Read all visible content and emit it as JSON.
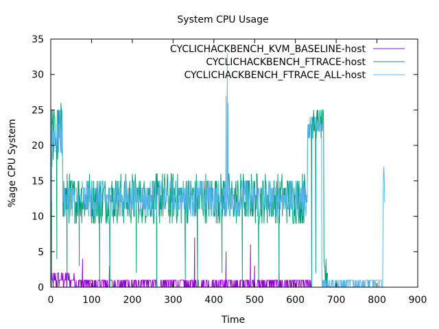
{
  "chart_data": {
    "type": "line",
    "title": "System CPU Usage",
    "xlabel": "Time",
    "ylabel": "%age CPU System",
    "xlim": [
      0,
      900
    ],
    "ylim": [
      0,
      35
    ],
    "xticks": [
      0,
      100,
      200,
      300,
      400,
      500,
      600,
      700,
      800,
      900
    ],
    "yticks": [
      0,
      5,
      10,
      15,
      20,
      25,
      30,
      35
    ],
    "grid": false,
    "legend_position": "top-right",
    "series": [
      {
        "name": "CYCLICHACKBENCH_KVM_BASELINE-host",
        "color": "#9400d3",
        "segments": [
          {
            "x_start": 0,
            "x_end": 60,
            "min": 0,
            "max": 2,
            "step": 1
          },
          {
            "x_start": 60,
            "x_end": 640,
            "min": 0,
            "max": 1,
            "step": 1
          },
          {
            "x_start": 640,
            "x_end": 680,
            "min": 0,
            "max": 0,
            "step": 2
          }
        ],
        "spikes": [
          [
            2,
            2
          ],
          [
            78,
            4
          ],
          [
            144,
            3
          ],
          [
            353,
            7
          ],
          [
            430,
            5
          ],
          [
            490,
            6
          ],
          [
            500,
            3
          ],
          [
            560,
            2
          ]
        ]
      },
      {
        "name": "CYCLICHACKBENCH_FTRACE-host",
        "color": "#009e73",
        "segments": [
          {
            "x_start": 0,
            "x_end": 30,
            "min": 17,
            "max": 26,
            "step": 1
          },
          {
            "x_start": 30,
            "x_end": 630,
            "min": 9,
            "max": 16,
            "step": 1
          },
          {
            "x_start": 630,
            "x_end": 670,
            "min": 21,
            "max": 25,
            "step": 1
          },
          {
            "x_start": 670,
            "x_end": 680,
            "min": 0,
            "max": 4,
            "step": 1
          }
        ],
        "spikes": [
          [
            2,
            0
          ],
          [
            15,
            4
          ],
          [
            40,
            0
          ],
          [
            70,
            3
          ],
          [
            120,
            0
          ],
          [
            145,
            0
          ],
          [
            210,
            2
          ],
          [
            260,
            0
          ],
          [
            330,
            1
          ],
          [
            360,
            0
          ],
          [
            420,
            2
          ],
          [
            470,
            0
          ],
          [
            510,
            1
          ],
          [
            560,
            0
          ],
          [
            640,
            0
          ],
          [
            650,
            2
          ]
        ]
      },
      {
        "name": "CYCLICHACKBENCH_FTRACE_ALL-host",
        "color": "#56b4e9",
        "segments": [
          {
            "x_start": 0,
            "x_end": 30,
            "min": 18,
            "max": 25,
            "step": 1
          },
          {
            "x_start": 30,
            "x_end": 630,
            "min": 10,
            "max": 15,
            "step": 1
          },
          {
            "x_start": 630,
            "x_end": 665,
            "min": 21,
            "max": 24,
            "step": 1
          },
          {
            "x_start": 665,
            "x_end": 815,
            "min": 0,
            "max": 1,
            "step": 1
          },
          {
            "x_start": 815,
            "x_end": 821,
            "min": 12,
            "max": 17,
            "step": 1
          }
        ],
        "spikes": [
          [
            2,
            12
          ],
          [
            430,
            27
          ],
          [
            433,
            33
          ],
          [
            435,
            26
          ],
          [
            440,
            10
          ],
          [
            690,
            1
          ]
        ]
      }
    ]
  }
}
